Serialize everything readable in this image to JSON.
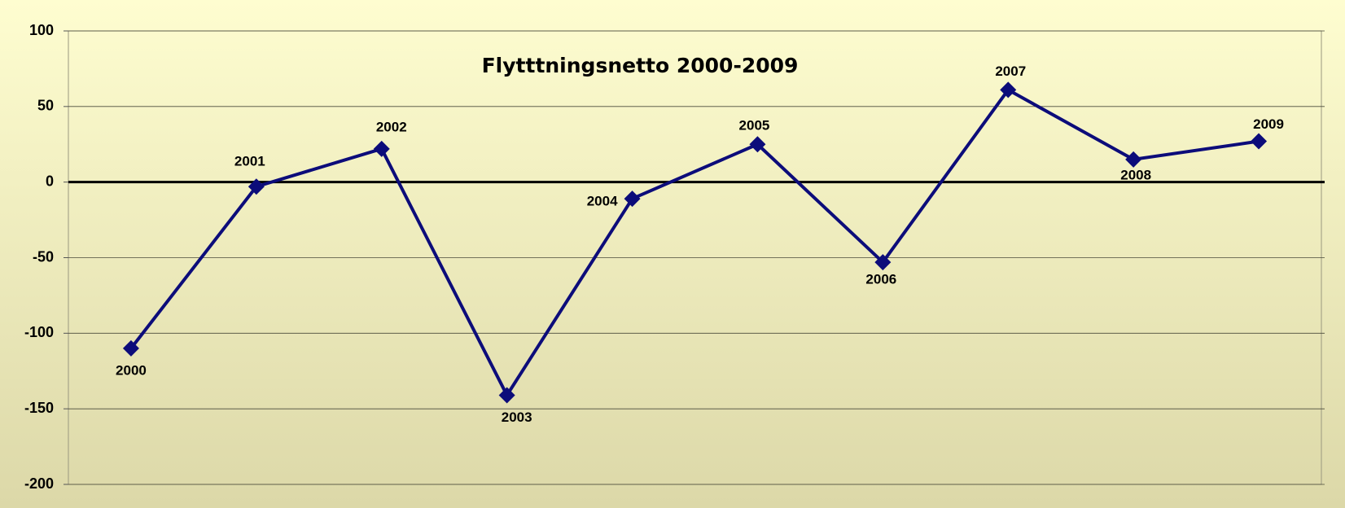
{
  "chart_data": {
    "type": "line",
    "title": "Flytttningsnetto 2000-2009",
    "categories": [
      "2000",
      "2001",
      "2002",
      "2003",
      "2004",
      "2005",
      "2006",
      "2007",
      "2008",
      "2009"
    ],
    "values": [
      -110,
      -3,
      22,
      -141,
      -11,
      25,
      -53,
      61,
      15,
      27
    ],
    "color": "#0c0c7a",
    "ylim": [
      -200,
      100
    ],
    "yticks": [
      -200,
      -150,
      -100,
      -50,
      0,
      50,
      100
    ],
    "grid": true
  }
}
